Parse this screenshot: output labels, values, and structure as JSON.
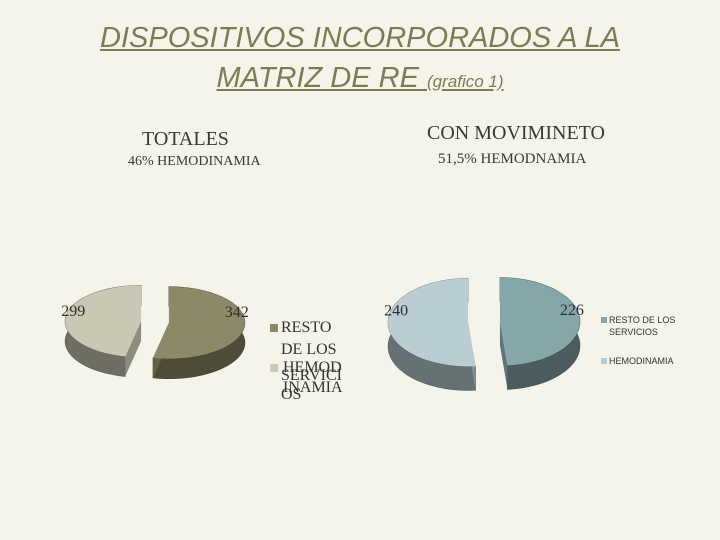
{
  "slide": {
    "title_line1": "DISPOSITIVOS INCORPORADOS A LA",
    "title_line2": "MATRIZ DE RE",
    "title_suffix": "(grafico 1)"
  },
  "chart_data": [
    {
      "type": "pie",
      "title": "TOTALES",
      "subtitle": "46% HEMODINAMIA",
      "categories": [
        "RESTO DE LOS SERVICIOS",
        "HEMODINAMIA"
      ],
      "values": [
        342,
        299
      ],
      "colors": [
        "#8c8a66",
        "#c8c8b4"
      ],
      "data_labels": [
        "342",
        "299"
      ],
      "legend": {
        "placement": "right",
        "entries": [
          "RESTO DE LOS SERVICIOS",
          "HEMODINAMIA"
        ],
        "entry1_lines": [
          "RESTO",
          "DE LOS",
          "SERVICI",
          "OS"
        ],
        "entry2_lines": [
          "HEMOD",
          "INAMIA"
        ]
      }
    },
    {
      "type": "pie",
      "title": "CON MOVIMINETO",
      "subtitle": "51,5% HEMODNAMIA",
      "categories": [
        "RESTO DE LOS SERVICIOS",
        "HEMODINAMIA"
      ],
      "values": [
        226,
        240
      ],
      "colors": [
        "#86a7aa",
        "#b9cdd2"
      ],
      "data_labels": [
        "226",
        "240"
      ],
      "legend": {
        "placement": "right",
        "entries": [
          "RESTO DE LOS SERVICIOS",
          "HEMODINAMIA"
        ],
        "entry1_lines": [
          "RESTO DE LOS",
          "SERVICIOS"
        ]
      }
    }
  ]
}
